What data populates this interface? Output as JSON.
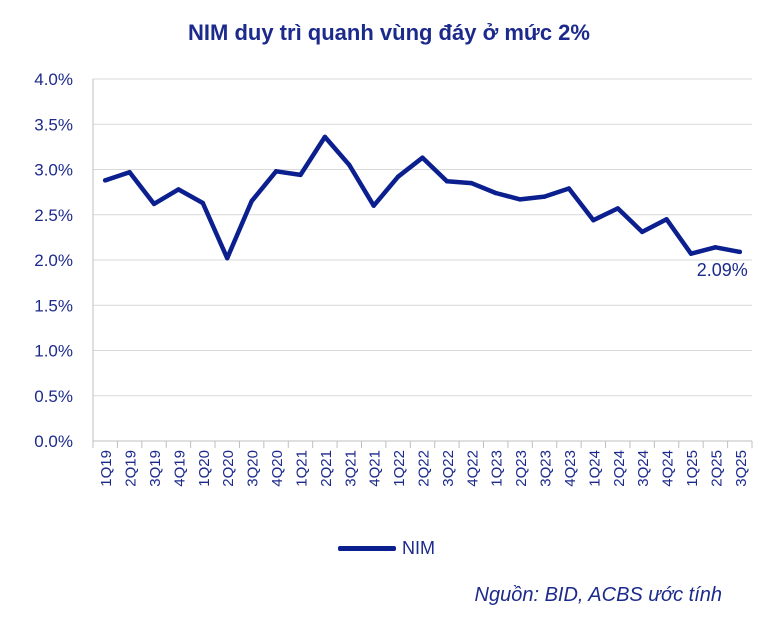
{
  "chart_data": {
    "type": "line",
    "title": "NIM duy trì quanh vùng đáy ở mức 2%",
    "categories": [
      "1Q19",
      "2Q19",
      "3Q19",
      "4Q19",
      "1Q20",
      "2Q20",
      "3Q20",
      "4Q20",
      "1Q21",
      "2Q21",
      "3Q21",
      "4Q21",
      "1Q22",
      "2Q22",
      "3Q22",
      "4Q22",
      "1Q23",
      "2Q23",
      "3Q23",
      "4Q23",
      "1Q24",
      "2Q24",
      "3Q24",
      "4Q24",
      "1Q25",
      "2Q25",
      "3Q25"
    ],
    "series": [
      {
        "name": "NIM",
        "values": [
          2.88,
          2.97,
          2.62,
          2.78,
          2.63,
          2.02,
          2.65,
          2.98,
          2.94,
          3.36,
          3.05,
          2.6,
          2.92,
          3.13,
          2.87,
          2.85,
          2.74,
          2.67,
          2.7,
          2.79,
          2.44,
          2.57,
          2.31,
          2.45,
          2.07,
          2.14,
          2.09
        ]
      }
    ],
    "yticks": [
      "0.0%",
      "0.5%",
      "1.0%",
      "1.5%",
      "2.0%",
      "2.5%",
      "3.0%",
      "3.5%",
      "4.0%"
    ],
    "ylim": [
      0,
      4
    ],
    "grid": true,
    "legend": "bottom",
    "last_label": "2.09%",
    "line_color": "#0b1f8f"
  },
  "source": "Nguồn: BID, ACBS ước tính"
}
